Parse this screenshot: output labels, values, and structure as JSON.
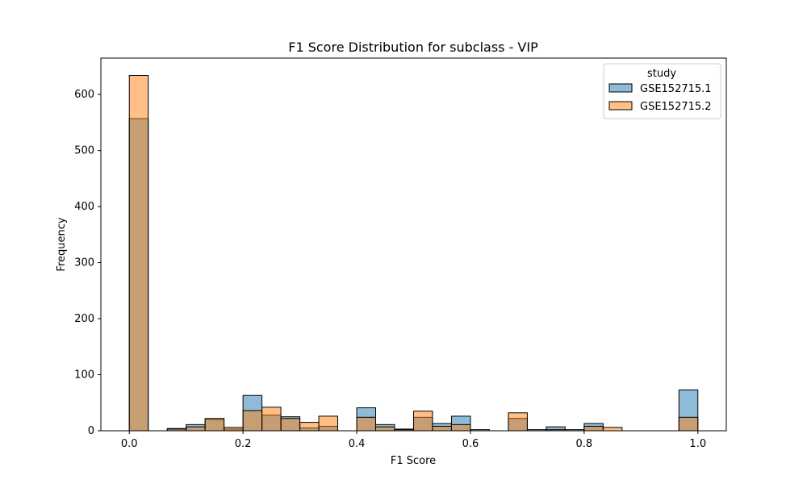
{
  "chart_data": {
    "type": "bar",
    "title": "F1 Score Distribution for subclass - VIP",
    "xlabel": "F1 Score",
    "ylabel": "Frequency",
    "xlim": [
      -0.05,
      1.05
    ],
    "ylim": [
      0,
      665
    ],
    "xticks": [
      "0.0",
      "0.2",
      "0.4",
      "0.6",
      "0.8",
      "1.0"
    ],
    "yticks": [
      "0",
      "100",
      "200",
      "300",
      "400",
      "500",
      "600"
    ],
    "bin_width": 0.0333,
    "bin_starts": [
      0.0,
      0.0333,
      0.0667,
      0.1,
      0.1333,
      0.1667,
      0.2,
      0.2333,
      0.2667,
      0.3,
      0.3333,
      0.3667,
      0.4,
      0.4333,
      0.4667,
      0.5,
      0.5333,
      0.5667,
      0.6,
      0.6333,
      0.6667,
      0.7,
      0.7333,
      0.7667,
      0.8,
      0.8333,
      0.8667,
      0.9,
      0.9333,
      0.9667
    ],
    "legend": {
      "title": "study",
      "placement": "top-right"
    },
    "series": [
      {
        "name": "GSE152715.1",
        "color": "#1f77b4",
        "values": [
          557,
          0,
          4,
          11,
          20,
          3,
          63,
          28,
          25,
          5,
          8,
          0,
          41,
          11,
          3,
          24,
          13,
          26,
          2,
          0,
          22,
          2,
          7,
          2,
          13,
          0,
          0,
          0,
          0,
          73
        ]
      },
      {
        "name": "GSE152715.2",
        "color": "#ff7f0e",
        "values": [
          634,
          0,
          3,
          7,
          22,
          6,
          36,
          42,
          22,
          15,
          26,
          0,
          24,
          7,
          2,
          35,
          8,
          11,
          0,
          0,
          32,
          0,
          2,
          0,
          8,
          6,
          0,
          0,
          0,
          24
        ]
      }
    ]
  }
}
